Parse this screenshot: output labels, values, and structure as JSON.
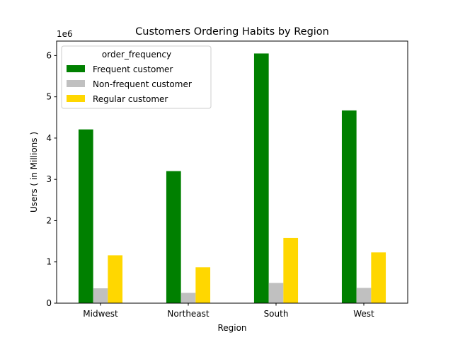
{
  "chart_data": {
    "type": "bar",
    "title": "Customers Ordering Habits by Region",
    "xlabel": "Region",
    "ylabel": "Users ( in Millions )",
    "offset_label": "1e6",
    "categories": [
      "Midwest",
      "Northeast",
      "South",
      "West"
    ],
    "series": [
      {
        "name": "Frequent customer",
        "color": "#008000",
        "values": [
          4.21,
          3.2,
          6.05,
          4.67
        ]
      },
      {
        "name": "Non-frequent customer",
        "color": "#c0c0c0",
        "values": [
          0.36,
          0.25,
          0.49,
          0.37
        ]
      },
      {
        "name": "Regular customer",
        "color": "#ffd700",
        "values": [
          1.16,
          0.87,
          1.58,
          1.23
        ]
      }
    ],
    "ylim": [
      0,
      6.35
    ],
    "yticks": [
      0,
      1,
      2,
      3,
      4,
      5,
      6
    ],
    "grid": false,
    "legend": {
      "title": "order_frequency",
      "placement": "top-left"
    }
  }
}
